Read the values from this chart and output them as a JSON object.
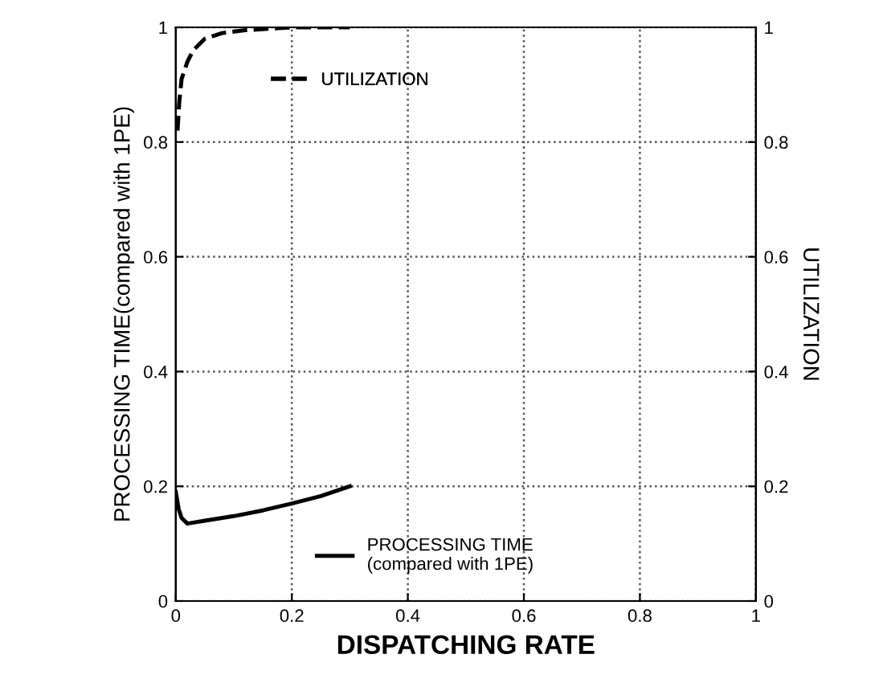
{
  "chart_data": {
    "type": "line",
    "xlabel": "DISPATCHING RATE",
    "ylabel": "PROCESSING TIME(compared with 1PE)",
    "y2label": "UTILIZATION",
    "xlim": [
      0,
      1
    ],
    "xticks": [
      0,
      0.2,
      0.4,
      0.6,
      0.8,
      1
    ],
    "ylim": [
      0,
      1
    ],
    "yticks": [
      0,
      0.2,
      0.4,
      0.6,
      0.8,
      1
    ],
    "y2lim": [
      0,
      1
    ],
    "y2ticks": [
      0,
      0.2,
      0.4,
      0.6,
      0.8,
      1
    ],
    "grid": true,
    "legend": "center",
    "marker": "none",
    "series": [
      {
        "name": "UTILIZATION",
        "color": "#000000",
        "axis": "y2",
        "line_style": "dashed",
        "x": [
          0.003,
          0.006,
          0.01,
          0.02,
          0.03,
          0.05,
          0.08,
          0.12,
          0.2,
          0.3
        ],
        "values": [
          0.82,
          0.87,
          0.91,
          0.94,
          0.96,
          0.98,
          0.99,
          0.995,
          1,
          1
        ]
      },
      {
        "name": "PROCESSING TIME\n(compared with 1PE)",
        "color": "#000000",
        "axis": "y",
        "line_style": "solid",
        "x": [
          0,
          0.005,
          0.01,
          0.02,
          0.05,
          0.1,
          0.15,
          0.2,
          0.25,
          0.3
        ],
        "values": [
          0.19,
          0.16,
          0.145,
          0.135,
          0.14,
          0.148,
          0.158,
          0.17,
          0.183,
          0.2
        ]
      }
    ]
  }
}
